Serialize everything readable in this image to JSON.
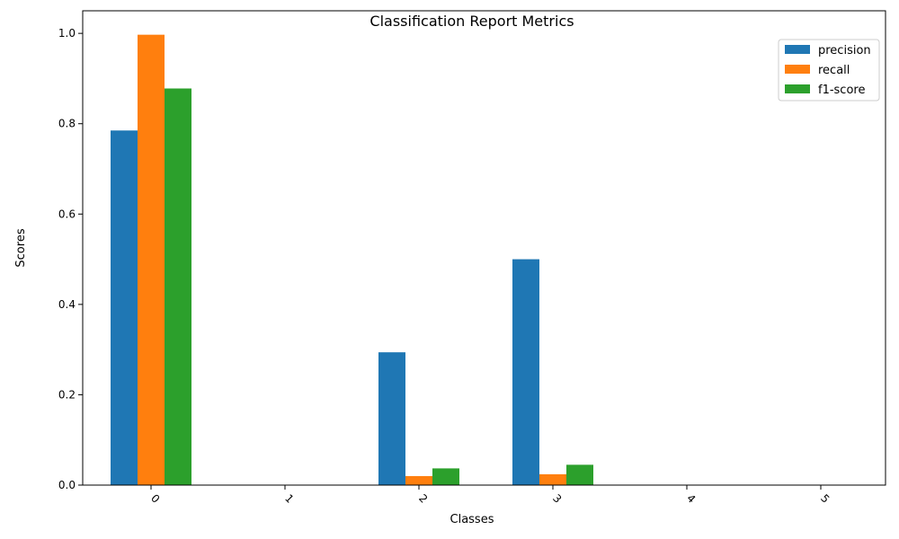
{
  "chart_data": {
    "type": "bar",
    "title": "Classification Report Metrics",
    "xlabel": "Classes",
    "ylabel": "Scores",
    "categories": [
      "0",
      "1",
      "2",
      "3",
      "4",
      "5"
    ],
    "ylim": [
      0,
      1.05
    ],
    "yticks": [
      "0.0",
      "0.2",
      "0.4",
      "0.6",
      "0.8",
      "1.0"
    ],
    "x_tick_rotation": "45 degrees",
    "grid": false,
    "legend_position": "top-right",
    "series": [
      {
        "name": "precision",
        "color": "#1f77b4",
        "values": [
          0.785,
          0,
          0.294,
          0.5,
          0,
          0
        ]
      },
      {
        "name": "recall",
        "color": "#ff7f0e",
        "values": [
          0.997,
          0,
          0.02,
          0.024,
          0,
          0
        ]
      },
      {
        "name": "f1-score",
        "color": "#2ca02c",
        "values": [
          0.878,
          0,
          0.037,
          0.045,
          0,
          0
        ]
      }
    ]
  }
}
